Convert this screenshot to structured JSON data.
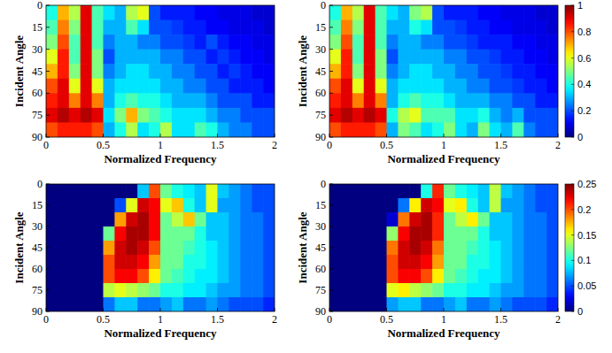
{
  "chart_data": [
    {
      "type": "heatmap",
      "x_label": "Normalized Frequency",
      "y_label": "Incident Angle",
      "xlim": [
        0,
        2
      ],
      "ylim": [
        90,
        0
      ],
      "xticks": [
        0,
        0.5,
        1,
        1.5,
        2
      ],
      "yticks": [
        0,
        15,
        30,
        45,
        60,
        75,
        90
      ],
      "x": [
        0.05,
        0.15,
        0.25,
        0.35,
        0.45,
        0.55,
        0.65,
        0.75,
        0.85,
        0.95,
        1.05,
        1.15,
        1.25,
        1.35,
        1.45,
        1.55,
        1.65,
        1.75,
        1.85,
        1.95
      ],
      "y": [
        5,
        15,
        25,
        35,
        45,
        55,
        65,
        75,
        85
      ],
      "clim": [
        0,
        1
      ],
      "values": [
        [
          0.4,
          0.7,
          0.55,
          0.9,
          0.45,
          0.35,
          0.3,
          0.55,
          0.6,
          0.2,
          0.15,
          0.15,
          0.15,
          0.12,
          0.12,
          0.1,
          0.1,
          0.1,
          0.08,
          0.08
        ],
        [
          0.45,
          0.75,
          0.5,
          0.9,
          0.45,
          0.3,
          0.3,
          0.45,
          0.35,
          0.2,
          0.2,
          0.18,
          0.15,
          0.15,
          0.12,
          0.12,
          0.1,
          0.1,
          0.1,
          0.08
        ],
        [
          0.5,
          0.8,
          0.45,
          0.9,
          0.45,
          0.25,
          0.3,
          0.3,
          0.25,
          0.25,
          0.2,
          0.2,
          0.18,
          0.15,
          0.2,
          0.15,
          0.12,
          0.12,
          0.1,
          0.1
        ],
        [
          0.6,
          0.85,
          0.45,
          0.9,
          0.5,
          0.2,
          0.3,
          0.3,
          0.3,
          0.3,
          0.25,
          0.25,
          0.2,
          0.2,
          0.15,
          0.18,
          0.15,
          0.12,
          0.12,
          0.1
        ],
        [
          0.7,
          0.85,
          0.5,
          0.9,
          0.5,
          0.25,
          0.3,
          0.35,
          0.35,
          0.3,
          0.3,
          0.25,
          0.25,
          0.2,
          0.2,
          0.15,
          0.18,
          0.15,
          0.12,
          0.12
        ],
        [
          0.8,
          0.9,
          0.6,
          0.9,
          0.6,
          0.3,
          0.35,
          0.35,
          0.35,
          0.35,
          0.3,
          0.3,
          0.25,
          0.25,
          0.2,
          0.2,
          0.15,
          0.15,
          0.15,
          0.12
        ],
        [
          0.85,
          0.9,
          0.75,
          0.9,
          0.75,
          0.3,
          0.4,
          0.45,
          0.4,
          0.4,
          0.35,
          0.3,
          0.3,
          0.3,
          0.25,
          0.2,
          0.2,
          0.2,
          0.15,
          0.15
        ],
        [
          0.9,
          0.95,
          0.9,
          0.95,
          0.9,
          0.35,
          0.5,
          0.7,
          0.5,
          0.45,
          0.4,
          0.35,
          0.35,
          0.35,
          0.3,
          0.25,
          0.25,
          0.2,
          0.2,
          0.2
        ],
        [
          0.8,
          0.85,
          0.85,
          0.85,
          0.8,
          0.3,
          0.4,
          0.55,
          0.35,
          0.4,
          0.55,
          0.35,
          0.35,
          0.45,
          0.4,
          0.3,
          0.25,
          0.25,
          0.2,
          0.2
        ]
      ]
    },
    {
      "type": "heatmap",
      "x_label": "Normalized Frequency",
      "y_label": "Incident Angle",
      "xlim": [
        0,
        2
      ],
      "ylim": [
        90,
        0
      ],
      "xticks": [
        0,
        0.5,
        1,
        1.5,
        2
      ],
      "yticks": [
        0,
        15,
        30,
        45,
        60,
        75,
        90
      ],
      "x": [
        0.05,
        0.15,
        0.25,
        0.35,
        0.45,
        0.55,
        0.65,
        0.75,
        0.85,
        0.95,
        1.05,
        1.15,
        1.25,
        1.35,
        1.45,
        1.55,
        1.65,
        1.75,
        1.85,
        1.95
      ],
      "y": [
        5,
        15,
        25,
        35,
        45,
        55,
        65,
        75,
        85
      ],
      "clim": [
        0,
        1
      ],
      "cticks": [
        0,
        0.2,
        0.4,
        0.6,
        0.8,
        1
      ],
      "values": [
        [
          0.4,
          0.7,
          0.55,
          0.9,
          0.45,
          0.35,
          0.3,
          0.5,
          0.55,
          0.2,
          0.15,
          0.15,
          0.15,
          0.12,
          0.12,
          0.1,
          0.1,
          0.1,
          0.08,
          0.08
        ],
        [
          0.45,
          0.75,
          0.5,
          0.9,
          0.45,
          0.3,
          0.3,
          0.4,
          0.35,
          0.2,
          0.2,
          0.18,
          0.15,
          0.15,
          0.12,
          0.12,
          0.1,
          0.1,
          0.1,
          0.08
        ],
        [
          0.5,
          0.8,
          0.45,
          0.9,
          0.45,
          0.25,
          0.3,
          0.3,
          0.25,
          0.25,
          0.2,
          0.2,
          0.18,
          0.15,
          0.15,
          0.15,
          0.12,
          0.12,
          0.1,
          0.1
        ],
        [
          0.6,
          0.85,
          0.45,
          0.9,
          0.5,
          0.2,
          0.3,
          0.3,
          0.3,
          0.3,
          0.25,
          0.25,
          0.2,
          0.2,
          0.18,
          0.15,
          0.15,
          0.12,
          0.12,
          0.1
        ],
        [
          0.7,
          0.85,
          0.5,
          0.9,
          0.5,
          0.25,
          0.3,
          0.35,
          0.35,
          0.3,
          0.3,
          0.25,
          0.25,
          0.2,
          0.2,
          0.18,
          0.15,
          0.15,
          0.12,
          0.12
        ],
        [
          0.8,
          0.9,
          0.6,
          0.9,
          0.6,
          0.3,
          0.35,
          0.35,
          0.35,
          0.35,
          0.3,
          0.3,
          0.25,
          0.25,
          0.2,
          0.2,
          0.18,
          0.15,
          0.15,
          0.12
        ],
        [
          0.85,
          0.9,
          0.75,
          0.9,
          0.75,
          0.3,
          0.4,
          0.45,
          0.4,
          0.4,
          0.35,
          0.3,
          0.3,
          0.3,
          0.25,
          0.25,
          0.2,
          0.2,
          0.15,
          0.15
        ],
        [
          0.9,
          0.95,
          0.9,
          0.95,
          0.9,
          0.4,
          0.55,
          0.6,
          0.45,
          0.45,
          0.45,
          0.35,
          0.35,
          0.4,
          0.3,
          0.25,
          0.3,
          0.2,
          0.2,
          0.2
        ],
        [
          0.8,
          0.85,
          0.85,
          0.85,
          0.8,
          0.3,
          0.5,
          0.45,
          0.35,
          0.4,
          0.5,
          0.35,
          0.3,
          0.5,
          0.35,
          0.3,
          0.45,
          0.25,
          0.2,
          0.2
        ]
      ]
    },
    {
      "type": "heatmap",
      "x_label": "Normalized Frequency",
      "y_label": "Incident Angle",
      "xlim": [
        0,
        2
      ],
      "ylim": [
        90,
        0
      ],
      "xticks": [
        0,
        0.5,
        1,
        1.5,
        2
      ],
      "yticks": [
        0,
        15,
        30,
        45,
        60,
        75,
        90
      ],
      "x": [
        0.05,
        0.15,
        0.25,
        0.35,
        0.45,
        0.55,
        0.65,
        0.75,
        0.85,
        0.95,
        1.05,
        1.15,
        1.25,
        1.35,
        1.45,
        1.55,
        1.65,
        1.75,
        1.85,
        1.95
      ],
      "y": [
        5,
        15,
        25,
        35,
        45,
        55,
        65,
        75,
        85
      ],
      "clim": [
        0,
        0.25
      ],
      "values": [
        [
          0,
          0,
          0,
          0,
          0,
          0,
          0,
          0,
          0.08,
          0.2,
          0.12,
          0.1,
          0.09,
          0.08,
          0.15,
          0.08,
          0.07,
          0.06,
          0.05,
          0.05
        ],
        [
          0,
          0,
          0,
          0,
          0,
          0,
          0.05,
          0.15,
          0.23,
          0.22,
          0.15,
          0.17,
          0.1,
          0.08,
          0.15,
          0.07,
          0.07,
          0.06,
          0.05,
          0.05
        ],
        [
          0,
          0,
          0,
          0,
          0,
          0,
          0.18,
          0.23,
          0.24,
          0.22,
          0.12,
          0.14,
          0.17,
          0.12,
          0.08,
          0.08,
          0.07,
          0.06,
          0.06,
          0.05
        ],
        [
          0,
          0,
          0,
          0,
          0,
          0.12,
          0.22,
          0.24,
          0.24,
          0.22,
          0.12,
          0.12,
          0.12,
          0.1,
          0.08,
          0.08,
          0.07,
          0.06,
          0.06,
          0.05
        ],
        [
          0,
          0,
          0,
          0,
          0,
          0.18,
          0.23,
          0.24,
          0.23,
          0.2,
          0.12,
          0.12,
          0.11,
          0.1,
          0.09,
          0.08,
          0.07,
          0.06,
          0.06,
          0.05
        ],
        [
          0,
          0,
          0,
          0,
          0,
          0.2,
          0.23,
          0.23,
          0.22,
          0.18,
          0.12,
          0.12,
          0.1,
          0.1,
          0.09,
          0.08,
          0.07,
          0.06,
          0.06,
          0.05
        ],
        [
          0,
          0,
          0,
          0,
          0,
          0.2,
          0.22,
          0.22,
          0.2,
          0.16,
          0.12,
          0.11,
          0.1,
          0.09,
          0.09,
          0.08,
          0.07,
          0.06,
          0.06,
          0.05
        ],
        [
          0,
          0,
          0,
          0,
          0,
          0.14,
          0.15,
          0.14,
          0.13,
          0.12,
          0.1,
          0.1,
          0.09,
          0.09,
          0.08,
          0.07,
          0.07,
          0.06,
          0.06,
          0.05
        ],
        [
          0,
          0,
          0,
          0,
          0,
          0.06,
          0.08,
          0.08,
          0.06,
          0.06,
          0.07,
          0.08,
          0.06,
          0.06,
          0.07,
          0.06,
          0.05,
          0.05,
          0.05,
          0.04
        ]
      ]
    },
    {
      "type": "heatmap",
      "x_label": "Normalized Frequency",
      "y_label": "Incident Angle",
      "xlim": [
        0,
        2
      ],
      "ylim": [
        90,
        0
      ],
      "xticks": [
        0,
        0.5,
        1,
        1.5,
        2
      ],
      "yticks": [
        0,
        15,
        30,
        45,
        60,
        75,
        90
      ],
      "x": [
        0.05,
        0.15,
        0.25,
        0.35,
        0.45,
        0.55,
        0.65,
        0.75,
        0.85,
        0.95,
        1.05,
        1.15,
        1.25,
        1.35,
        1.45,
        1.55,
        1.65,
        1.75,
        1.85,
        1.95
      ],
      "y": [
        5,
        15,
        25,
        35,
        45,
        55,
        65,
        75,
        85
      ],
      "clim": [
        0,
        0.25
      ],
      "cticks": [
        0,
        0.05,
        0.1,
        0.15,
        0.2,
        0.25
      ],
      "values": [
        [
          0,
          0,
          0,
          0,
          0,
          0,
          0,
          0,
          0.1,
          0.21,
          0.12,
          0.1,
          0.09,
          0.08,
          0.14,
          0.08,
          0.07,
          0.06,
          0.05,
          0.05
        ],
        [
          0,
          0,
          0,
          0,
          0,
          0,
          0.06,
          0.16,
          0.23,
          0.22,
          0.15,
          0.16,
          0.1,
          0.08,
          0.14,
          0.07,
          0.07,
          0.06,
          0.05,
          0.05
        ],
        [
          0,
          0,
          0,
          0,
          0,
          0.02,
          0.19,
          0.23,
          0.24,
          0.21,
          0.12,
          0.14,
          0.16,
          0.12,
          0.08,
          0.08,
          0.07,
          0.06,
          0.06,
          0.05
        ],
        [
          0,
          0,
          0,
          0,
          0,
          0.13,
          0.22,
          0.24,
          0.24,
          0.21,
          0.12,
          0.12,
          0.12,
          0.1,
          0.08,
          0.08,
          0.07,
          0.06,
          0.06,
          0.05
        ],
        [
          0,
          0,
          0,
          0,
          0,
          0.19,
          0.23,
          0.24,
          0.23,
          0.19,
          0.12,
          0.12,
          0.11,
          0.1,
          0.09,
          0.08,
          0.07,
          0.06,
          0.06,
          0.05
        ],
        [
          0,
          0,
          0,
          0,
          0,
          0.2,
          0.23,
          0.23,
          0.22,
          0.18,
          0.12,
          0.12,
          0.1,
          0.1,
          0.09,
          0.08,
          0.07,
          0.06,
          0.06,
          0.05
        ],
        [
          0,
          0,
          0,
          0,
          0,
          0.2,
          0.22,
          0.22,
          0.2,
          0.16,
          0.12,
          0.11,
          0.1,
          0.09,
          0.09,
          0.08,
          0.07,
          0.06,
          0.06,
          0.05
        ],
        [
          0,
          0,
          0,
          0,
          0,
          0.15,
          0.16,
          0.14,
          0.13,
          0.12,
          0.1,
          0.1,
          0.09,
          0.09,
          0.08,
          0.07,
          0.07,
          0.06,
          0.06,
          0.05
        ],
        [
          0,
          0,
          0,
          0,
          0,
          0.07,
          0.08,
          0.08,
          0.06,
          0.06,
          0.07,
          0.08,
          0.06,
          0.06,
          0.07,
          0.06,
          0.05,
          0.05,
          0.05,
          0.04
        ]
      ]
    }
  ]
}
